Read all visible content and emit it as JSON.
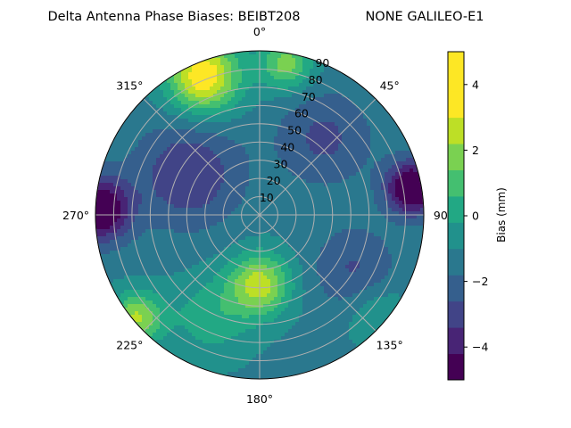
{
  "chart_data": {
    "type": "polar-contour",
    "title": "Delta Antenna Phase Biases: BEIBT208",
    "subtitle": "NONE GALILEO-E1",
    "colorbar_label": "Bias (mm)",
    "colorbar_ticks": [
      -4,
      -2,
      0,
      2,
      4
    ],
    "value_range": [
      -5,
      5
    ],
    "contour_levels": [
      -5,
      -4.2,
      -3.4,
      -2.6,
      -1.8,
      -1.0,
      -0.2,
      0.6,
      1.4,
      2.2,
      3.0,
      3.8,
      5
    ],
    "colormap": [
      "#440154",
      "#482475",
      "#414487",
      "#355f8d",
      "#2a788e",
      "#21918c",
      "#22a884",
      "#44bf70",
      "#7ad151",
      "#bddf26",
      "#fde725"
    ],
    "angle_ticks": [
      "0°",
      "45°",
      "90°",
      "135°",
      "180°",
      "225°",
      "270°",
      "315°"
    ],
    "radial_ticks": [
      "10",
      "20",
      "30",
      "40",
      "50",
      "60",
      "70",
      "80",
      "90"
    ],
    "angle_zero": "top",
    "angle_direction": "clockwise",
    "radial_range": [
      0,
      90
    ],
    "grid": true,
    "field_features": [
      {
        "azimuth": 338,
        "zenith": 82,
        "bias": 5.0,
        "spread": 14
      },
      {
        "azimuth": 10,
        "zenith": 84,
        "bias": 3.0,
        "spread": 10
      },
      {
        "azimuth": 180,
        "zenith": 38,
        "bias": 3.8,
        "spread": 12
      },
      {
        "azimuth": 205,
        "zenith": 62,
        "bias": 1.5,
        "spread": 16
      },
      {
        "azimuth": 230,
        "zenith": 88,
        "bias": 3.5,
        "spread": 10
      },
      {
        "azimuth": 80,
        "zenith": 85,
        "bias": -4.8,
        "spread": 10
      },
      {
        "azimuth": 272,
        "zenith": 88,
        "bias": -4.5,
        "spread": 12
      },
      {
        "azimuth": 40,
        "zenith": 55,
        "bias": -1.6,
        "spread": 18
      },
      {
        "azimuth": 300,
        "zenith": 45,
        "bias": -2.2,
        "spread": 20
      },
      {
        "azimuth": 120,
        "zenith": 60,
        "bias": -1.5,
        "spread": 16
      },
      {
        "azimuth": 130,
        "zenith": 85,
        "bias": 1.2,
        "spread": 12
      }
    ]
  }
}
